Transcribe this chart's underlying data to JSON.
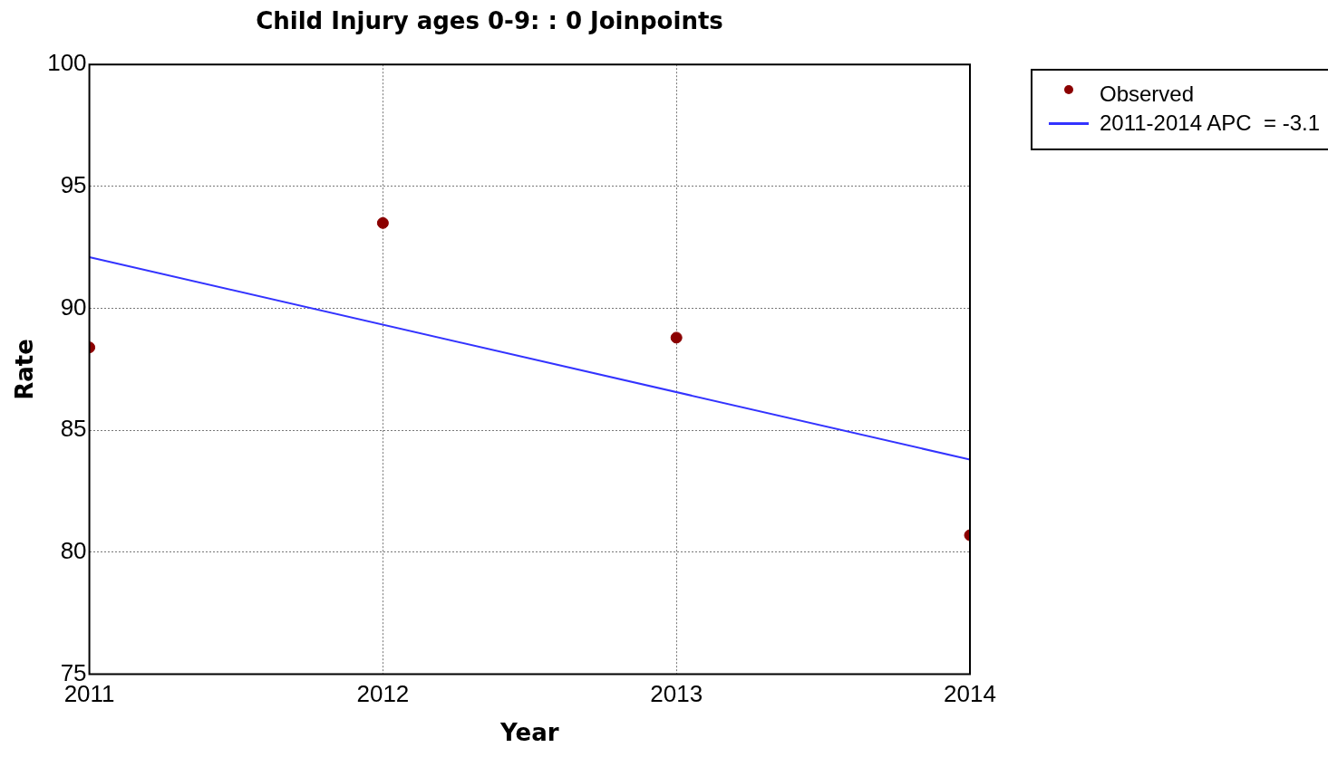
{
  "chart_data": {
    "type": "scatter",
    "title": "Child Injury ages 0-9: : 0 Joinpoints",
    "xlabel": "Year",
    "ylabel": "Rate",
    "x": [
      2011,
      2012,
      2013,
      2014
    ],
    "series": [
      {
        "name": "Observed",
        "type": "scatter",
        "color": "#8b0000",
        "marker": "circle",
        "values": [
          88.4,
          93.5,
          88.8,
          80.7
        ]
      },
      {
        "name": "2011-2014 APC  = -3.1",
        "type": "line",
        "color": "#3333ff",
        "marker": "none",
        "x": [
          2011,
          2014
        ],
        "values": [
          92.1,
          83.8
        ]
      }
    ],
    "xlim": [
      2011,
      2014
    ],
    "xticks": [
      2011,
      2012,
      2013,
      2014
    ],
    "ylim": [
      75,
      100
    ],
    "yticks": [
      75,
      80,
      85,
      90,
      95,
      100
    ],
    "grid": true,
    "legend": "top right"
  }
}
